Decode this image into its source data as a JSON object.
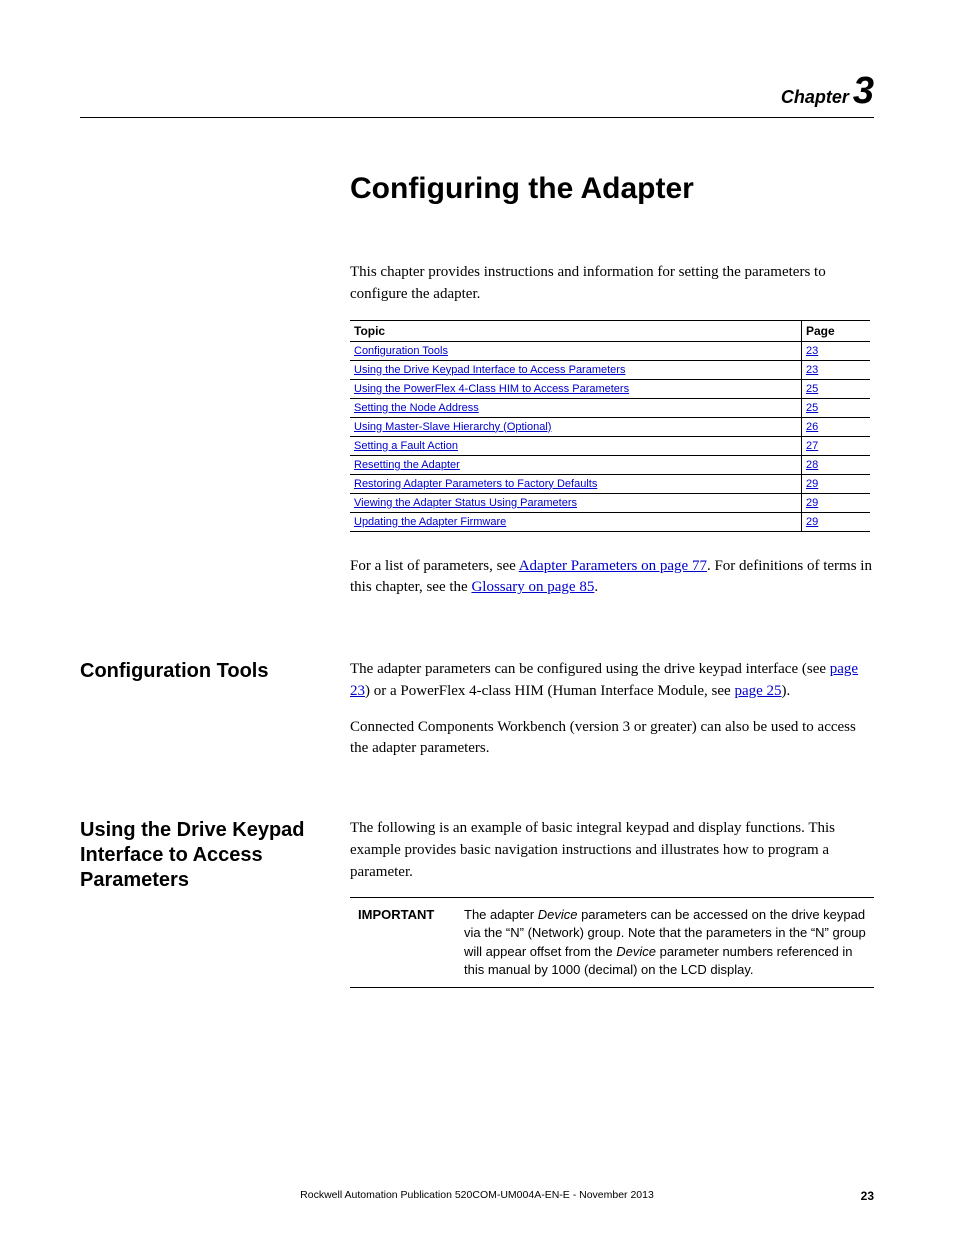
{
  "chapter": {
    "label": "Chapter",
    "number": "3"
  },
  "title": "Configuring the Adapter",
  "intro": "This chapter provides instructions and information for setting the parameters to configure the adapter.",
  "toc": {
    "headers": {
      "topic": "Topic",
      "page": "Page"
    },
    "rows": [
      {
        "topic": "Configuration Tools",
        "page": "23"
      },
      {
        "topic": "Using the Drive Keypad Interface to Access Parameters",
        "page": "23"
      },
      {
        "topic": "Using the PowerFlex 4-Class HIM to Access Parameters",
        "page": "25"
      },
      {
        "topic": "Setting the Node Address",
        "page": "25"
      },
      {
        "topic": "Using Master-Slave Hierarchy (Optional)",
        "page": "26"
      },
      {
        "topic": "Setting a Fault Action",
        "page": "27"
      },
      {
        "topic": "Resetting the Adapter",
        "page": "28"
      },
      {
        "topic": "Restoring Adapter Parameters to Factory Defaults",
        "page": "29"
      },
      {
        "topic": "Viewing the Adapter Status Using Parameters",
        "page": "29"
      },
      {
        "topic": "Updating the Adapter Firmware",
        "page": "29"
      }
    ]
  },
  "after_toc": {
    "pre1": "For a list of parameters, see ",
    "link1": "Adapter Parameters on page 77",
    "mid": ". For definitions of terms in this chapter, see the ",
    "link2": "Glossary on page 85",
    "post": "."
  },
  "section_config_tools": {
    "heading": "Configuration Tools",
    "p1_pre": "The adapter parameters can be configured using the drive keypad interface (see ",
    "p1_link1": "page 23",
    "p1_mid": ") or a PowerFlex 4-class HIM (Human Interface Module, see ",
    "p1_link2": "page 25",
    "p1_post": ").",
    "p2": "Connected Components Workbench (version 3 or greater) can also be used to access the adapter parameters."
  },
  "section_keypad": {
    "heading": "Using the Drive Keypad Interface to Access Parameters",
    "p1": "The following is an example of basic integral keypad and display functions. This example provides basic navigation instructions and illustrates how to program a parameter.",
    "important_label": "IMPORTANT",
    "important_pre": "The adapter ",
    "important_dev1": "Device",
    "important_mid1": " parameters can be accessed on the drive keypad via the “N” (Network) group. Note that the parameters in the “N” group will appear offset from the ",
    "important_dev2": "Device",
    "important_post": " parameter numbers referenced in this manual by 1000 (decimal) on the LCD display."
  },
  "footer": {
    "pub": "Rockwell Automation Publication 520COM-UM004A-EN-E - November 2013",
    "page": "23"
  }
}
